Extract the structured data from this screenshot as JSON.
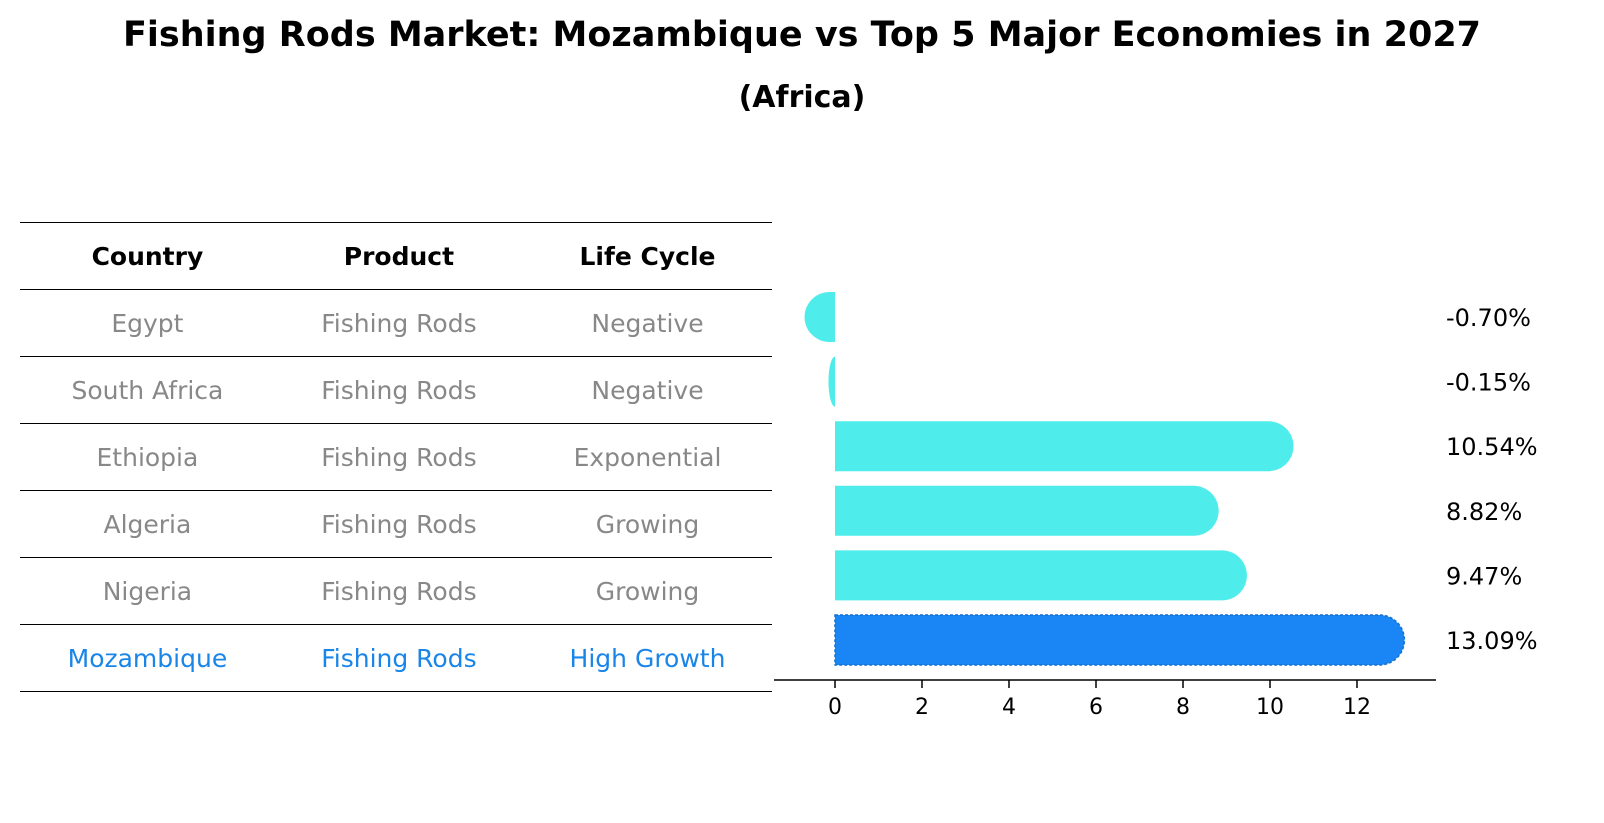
{
  "title": "Fishing Rods Market: Mozambique vs Top 5 Major Economies in 2027",
  "subtitle": "(Africa)",
  "table": {
    "headers": [
      "Country",
      "Product",
      "Life Cycle"
    ],
    "rows": [
      {
        "country": "Egypt",
        "product": "Fishing Rods",
        "life_cycle": "Negative"
      },
      {
        "country": "South Africa",
        "product": "Fishing Rods",
        "life_cycle": "Negative"
      },
      {
        "country": "Ethiopia",
        "product": "Fishing Rods",
        "life_cycle": "Exponential"
      },
      {
        "country": "Algeria",
        "product": "Fishing Rods",
        "life_cycle": "Growing"
      },
      {
        "country": "Nigeria",
        "product": "Fishing Rods",
        "life_cycle": "Growing"
      },
      {
        "country": "Mozambique",
        "product": "Fishing Rods",
        "life_cycle": "High Growth"
      }
    ]
  },
  "colors": {
    "bar": "#4eedeb",
    "highlight_bar": "#1a85f5",
    "highlight_text": "#1a85e8",
    "muted_text": "#888888"
  },
  "chart_data": {
    "type": "bar",
    "orientation": "horizontal",
    "categories": [
      "Egypt",
      "South Africa",
      "Ethiopia",
      "Algeria",
      "Nigeria",
      "Mozambique"
    ],
    "values": [
      -0.7,
      -0.15,
      10.54,
      8.82,
      9.47,
      13.09
    ],
    "value_labels": [
      "-0.70%",
      "-0.15%",
      "10.54%",
      "8.82%",
      "9.47%",
      "13.09%"
    ],
    "highlight": "Mozambique",
    "xlim": [
      -1.4,
      13.8
    ],
    "xticks": [
      0,
      2,
      4,
      6,
      8,
      10,
      12
    ],
    "xlabel": "",
    "ylabel": ""
  }
}
